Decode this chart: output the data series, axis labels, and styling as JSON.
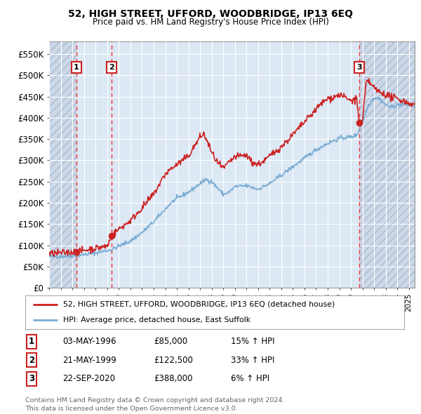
{
  "title": "52, HIGH STREET, UFFORD, WOODBRIDGE, IP13 6EQ",
  "subtitle": "Price paid vs. HM Land Registry's House Price Index (HPI)",
  "xlim_start": 1994.0,
  "xlim_end": 2025.5,
  "ylim_min": 0,
  "ylim_max": 580000,
  "yticks": [
    0,
    50000,
    100000,
    150000,
    200000,
    250000,
    300000,
    350000,
    400000,
    450000,
    500000,
    550000
  ],
  "ytick_labels": [
    "£0",
    "£50K",
    "£100K",
    "£150K",
    "£200K",
    "£250K",
    "£300K",
    "£350K",
    "£400K",
    "£450K",
    "£500K",
    "£550K"
  ],
  "sales": [
    {
      "date_num": 1996.35,
      "price": 85000,
      "label": "1"
    },
    {
      "date_num": 1999.38,
      "price": 122500,
      "label": "2"
    },
    {
      "date_num": 2020.72,
      "price": 388000,
      "label": "3"
    }
  ],
  "legend_line1": "52, HIGH STREET, UFFORD, WOODBRIDGE, IP13 6EQ (detached house)",
  "legend_line2": "HPI: Average price, detached house, East Suffolk",
  "table": [
    {
      "label": "1",
      "date": "03-MAY-1996",
      "price": "£85,000",
      "hpi": "15% ↑ HPI"
    },
    {
      "label": "2",
      "date": "21-MAY-1999",
      "price": "£122,500",
      "hpi": "33% ↑ HPI"
    },
    {
      "label": "3",
      "date": "22-SEP-2020",
      "price": "£388,000",
      "hpi": "6% ↑ HPI"
    }
  ],
  "footnote": "Contains HM Land Registry data © Crown copyright and database right 2024.\nThis data is licensed under the Open Government Licence v3.0.",
  "hpi_color": "#7aadd4",
  "price_color": "#cc2222",
  "vline_color": "#ee3333",
  "hatch_color": "#ccd8e8",
  "plot_bg": "#dce8f4",
  "grid_color": "#ffffff",
  "hpi_anchors": [
    [
      1994.0,
      73000
    ],
    [
      1995.0,
      74000
    ],
    [
      1996.0,
      75000
    ],
    [
      1996.35,
      76000
    ],
    [
      1997.0,
      78000
    ],
    [
      1998.0,
      82000
    ],
    [
      1999.0,
      88000
    ],
    [
      1999.38,
      90000
    ],
    [
      2000.0,
      98000
    ],
    [
      2001.0,
      110000
    ],
    [
      2002.0,
      130000
    ],
    [
      2003.0,
      155000
    ],
    [
      2004.0,
      185000
    ],
    [
      2004.5,
      200000
    ],
    [
      2005.0,
      210000
    ],
    [
      2006.0,
      225000
    ],
    [
      2007.0,
      245000
    ],
    [
      2007.5,
      255000
    ],
    [
      2008.0,
      250000
    ],
    [
      2008.5,
      235000
    ],
    [
      2009.0,
      220000
    ],
    [
      2009.5,
      225000
    ],
    [
      2010.0,
      238000
    ],
    [
      2011.0,
      240000
    ],
    [
      2012.0,
      232000
    ],
    [
      2013.0,
      245000
    ],
    [
      2014.0,
      265000
    ],
    [
      2015.0,
      285000
    ],
    [
      2016.0,
      305000
    ],
    [
      2017.0,
      325000
    ],
    [
      2018.0,
      340000
    ],
    [
      2019.0,
      352000
    ],
    [
      2020.0,
      355000
    ],
    [
      2020.5,
      360000
    ],
    [
      2021.0,
      390000
    ],
    [
      2021.5,
      430000
    ],
    [
      2022.0,
      448000
    ],
    [
      2022.5,
      445000
    ],
    [
      2023.0,
      430000
    ],
    [
      2023.5,
      425000
    ],
    [
      2024.0,
      430000
    ],
    [
      2024.5,
      432000
    ],
    [
      2025.0,
      430000
    ],
    [
      2025.5,
      428000
    ]
  ],
  "price_anchors": [
    [
      1994.0,
      80000
    ],
    [
      1995.0,
      82000
    ],
    [
      1996.0,
      84000
    ],
    [
      1996.35,
      85000
    ],
    [
      1997.0,
      88000
    ],
    [
      1998.0,
      93000
    ],
    [
      1999.0,
      98000
    ],
    [
      1999.38,
      122500
    ],
    [
      2000.0,
      138000
    ],
    [
      2001.0,
      158000
    ],
    [
      2002.0,
      188000
    ],
    [
      2003.0,
      220000
    ],
    [
      2004.0,
      268000
    ],
    [
      2004.5,
      280000
    ],
    [
      2005.0,
      290000
    ],
    [
      2006.0,
      310000
    ],
    [
      2007.0,
      355000
    ],
    [
      2007.3,
      362000
    ],
    [
      2007.7,
      340000
    ],
    [
      2008.0,
      318000
    ],
    [
      2008.5,
      295000
    ],
    [
      2009.0,
      280000
    ],
    [
      2009.5,
      295000
    ],
    [
      2010.0,
      308000
    ],
    [
      2011.0,
      312000
    ],
    [
      2011.5,
      295000
    ],
    [
      2012.0,
      290000
    ],
    [
      2012.5,
      298000
    ],
    [
      2013.0,
      310000
    ],
    [
      2014.0,
      332000
    ],
    [
      2015.0,
      360000
    ],
    [
      2016.0,
      390000
    ],
    [
      2017.0,
      420000
    ],
    [
      2017.5,
      435000
    ],
    [
      2018.0,
      445000
    ],
    [
      2018.5,
      448000
    ],
    [
      2019.0,
      455000
    ],
    [
      2019.5,
      448000
    ],
    [
      2020.0,
      440000
    ],
    [
      2020.5,
      445000
    ],
    [
      2020.72,
      388000
    ],
    [
      2021.0,
      390000
    ],
    [
      2021.3,
      480000
    ],
    [
      2021.5,
      488000
    ],
    [
      2022.0,
      470000
    ],
    [
      2022.5,
      460000
    ],
    [
      2023.0,
      455000
    ],
    [
      2023.5,
      448000
    ],
    [
      2024.0,
      445000
    ],
    [
      2024.5,
      440000
    ],
    [
      2025.0,
      435000
    ],
    [
      2025.5,
      430000
    ]
  ]
}
